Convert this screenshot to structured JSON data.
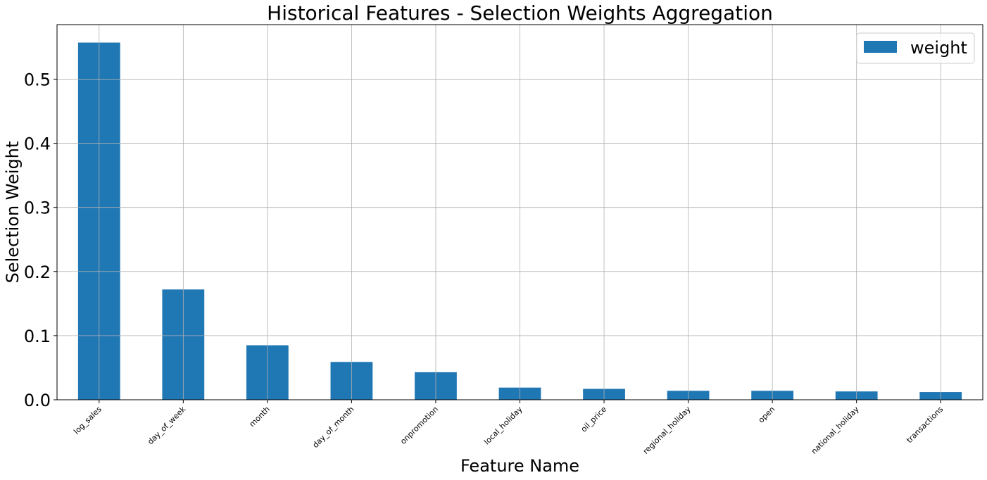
{
  "chart_data": {
    "type": "bar",
    "title": "Historical Features - Selection Weights Aggregation",
    "xlabel": "Feature Name",
    "ylabel": "Selection Weight",
    "categories": [
      "log_sales",
      "day_of_week",
      "month",
      "day_of_month",
      "onpromotion",
      "local_holiday",
      "oil_price",
      "regional_holiday",
      "open",
      "national_holiday",
      "transactions"
    ],
    "series": [
      {
        "name": "weight",
        "values": [
          0.557,
          0.172,
          0.085,
          0.059,
          0.043,
          0.019,
          0.017,
          0.014,
          0.014,
          0.013,
          0.012
        ]
      }
    ],
    "ylim": [
      0,
      0.585
    ],
    "yticks": [
      0.0,
      0.1,
      0.2,
      0.3,
      0.4,
      0.5
    ],
    "ytick_labels": [
      "0.0",
      "0.1",
      "0.2",
      "0.3",
      "0.4",
      "0.5"
    ],
    "grid": true,
    "legend_position": "top-right",
    "bar_color": "#1f77b4"
  }
}
